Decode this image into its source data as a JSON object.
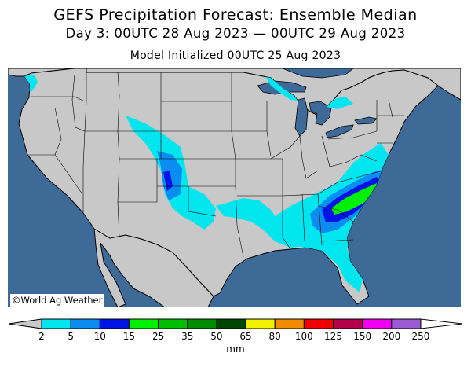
{
  "header": {
    "title": "GEFS Precipitation Forecast: Ensemble Median",
    "valid_period": "Day 3: 00UTC 28 Aug 2023 — 00UTC 29 Aug 2023",
    "initialized": "Model Initialized 00UTC 25 Aug 2023"
  },
  "map": {
    "credit": "©World Ag Weather",
    "ocean_color": "#3d6a96",
    "land_color": "#c8c8c8",
    "foreign_land_color": "#c8c8c8"
  },
  "legend": {
    "unit": "mm",
    "ticks": [
      "2",
      "5",
      "10",
      "15",
      "25",
      "35",
      "50",
      "65",
      "80",
      "100",
      "125",
      "150",
      "200",
      "250"
    ],
    "bins": [
      {
        "from": "2",
        "to": "5",
        "color": "#00e5ee"
      },
      {
        "from": "5",
        "to": "10",
        "color": "#0a8cf0"
      },
      {
        "from": "10",
        "to": "15",
        "color": "#0014e6"
      },
      {
        "from": "15",
        "to": "25",
        "color": "#00f000"
      },
      {
        "from": "25",
        "to": "35",
        "color": "#00be00"
      },
      {
        "from": "35",
        "to": "50",
        "color": "#008c00"
      },
      {
        "from": "50",
        "to": "65",
        "color": "#004600"
      },
      {
        "from": "65",
        "to": "80",
        "color": "#f0f000"
      },
      {
        "from": "80",
        "to": "100",
        "color": "#f08c00"
      },
      {
        "from": "100",
        "to": "125",
        "color": "#f00000"
      },
      {
        "from": "125",
        "to": "150",
        "color": "#b4004b"
      },
      {
        "from": "150",
        "to": "200",
        "color": "#f000f0"
      },
      {
        "from": "200",
        "to": "250",
        "color": "#9b5ad2"
      }
    ],
    "below_color": "#c8c8c8",
    "above_color": "#ffffff"
  }
}
